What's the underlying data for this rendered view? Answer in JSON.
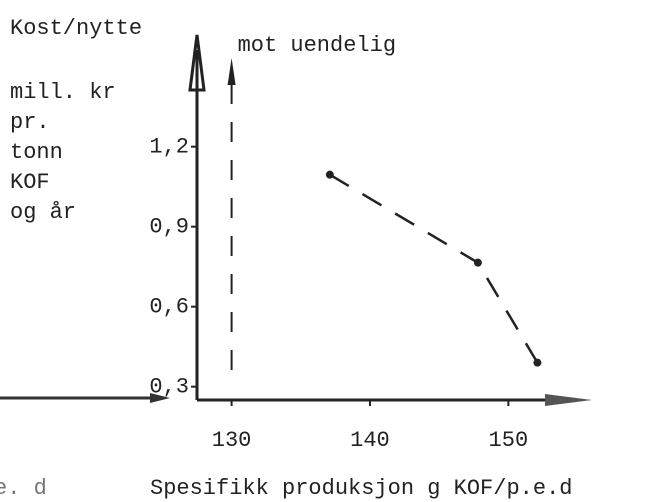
{
  "chart_data": {
    "type": "line",
    "y_label_lines": [
      "Kost/nytte",
      "mill. kr",
      "pr.",
      "tonn",
      "KOF",
      "og år"
    ],
    "x_label": "Spesifikk produksjon g KOF/p.e.d",
    "cropped_text": "e. d",
    "annotations": [
      {
        "text": "mot uendelig",
        "x": 130
      }
    ],
    "x": [
      137.1,
      147.8,
      152.1
    ],
    "series": [
      {
        "color": "#222222",
        "values": [
          1.095,
          0.765,
          0.39
        ]
      }
    ],
    "xlim": [
      127.5,
      155.9
    ],
    "ylim": [
      0.25,
      1.6
    ],
    "xticks": [
      130,
      140,
      150
    ],
    "yticks": [
      {
        "value": 1.2,
        "label": "1,2"
      },
      {
        "value": 0.9,
        "label": "0,9"
      },
      {
        "value": 0.6,
        "label": "0,6"
      },
      {
        "value": 0.3,
        "label": "0,3"
      }
    ]
  }
}
